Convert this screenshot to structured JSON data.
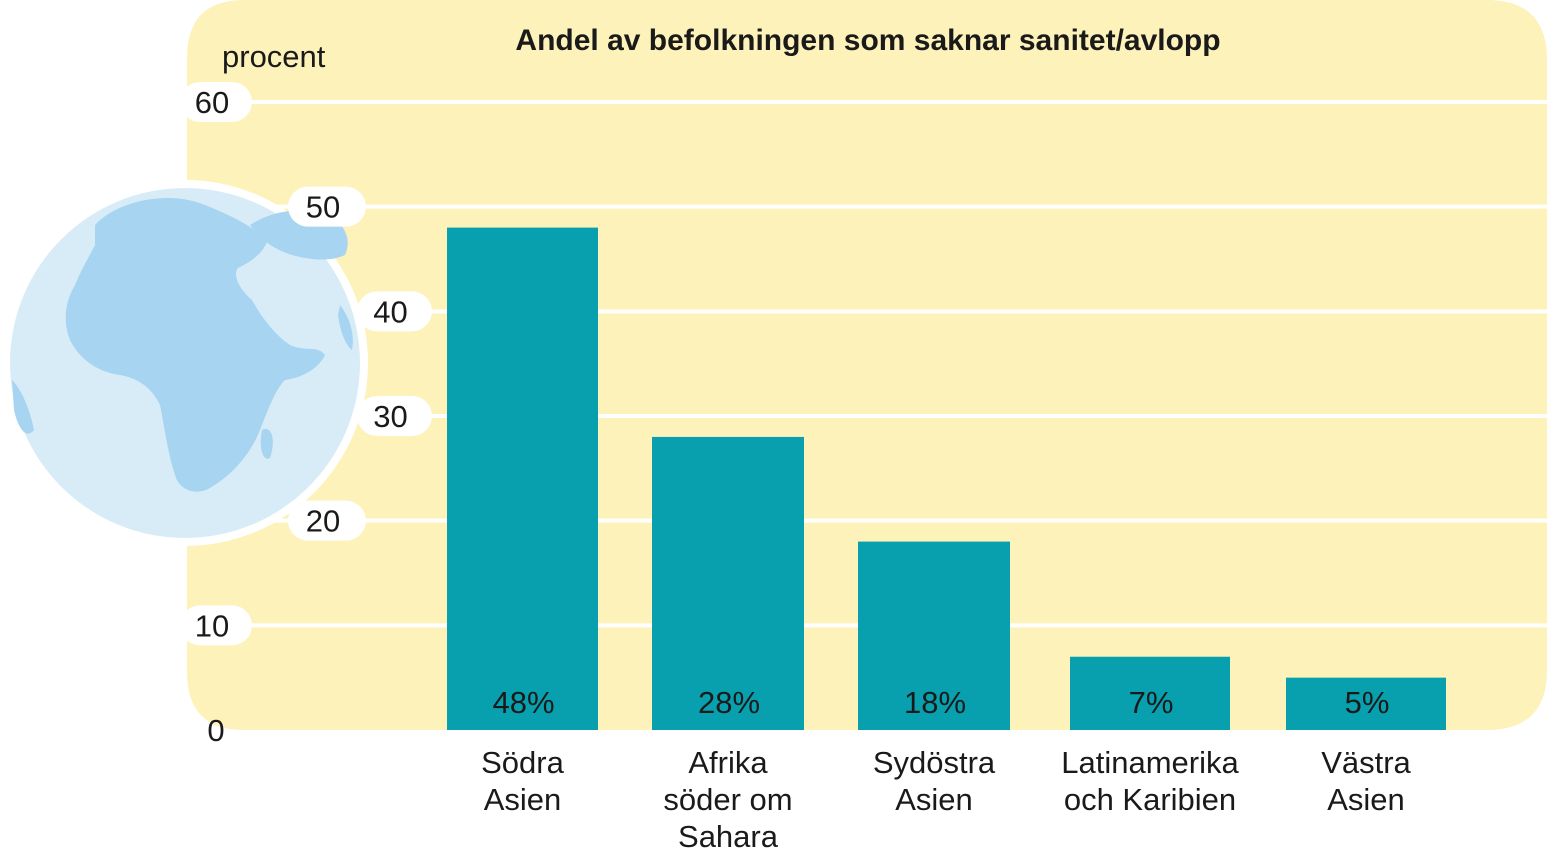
{
  "colors": {
    "panel": "#fdf2b9",
    "bar": "#08a0ae",
    "gridline": "#ffffff",
    "globe_ocean": "#d8ecf8",
    "globe_land": "#a7d4f0",
    "text": "#1a1a1a"
  },
  "decoration": {
    "globe": "globe-icon"
  },
  "chart_data": {
    "type": "bar",
    "title": "Andel av befolkningen som saknar sanitet/avlopp",
    "unit_label": "procent",
    "ylim": [
      0,
      60
    ],
    "yticks": [
      "0",
      "10",
      "20",
      "30",
      "40",
      "50",
      "60"
    ],
    "grid": true,
    "categories": [
      [
        "Södra",
        "Asien"
      ],
      [
        "Afrika",
        "söder om",
        "Sahara"
      ],
      [
        "Sydöstra",
        "Asien"
      ],
      [
        "Latinamerika",
        "och Karibien"
      ],
      [
        "Västra",
        "Asien"
      ]
    ],
    "values": [
      48,
      28,
      18,
      7,
      5
    ],
    "value_labels": [
      "48%",
      "28%",
      "18%",
      "7%",
      "5%"
    ]
  }
}
